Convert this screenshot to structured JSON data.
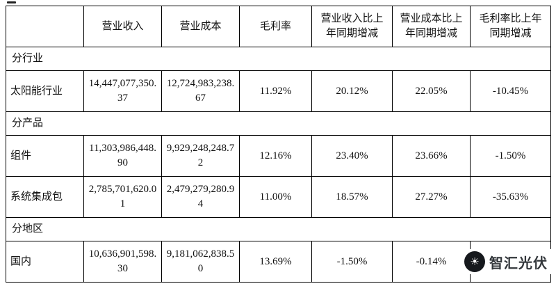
{
  "table": {
    "header": {
      "corner": "",
      "revenue": "营业收入",
      "cost": "营业成本",
      "margin": "毛利率",
      "revenue_yoy": "营业收入比上年同期增减",
      "cost_yoy": "营业成本比上年同期增减",
      "margin_yoy": "毛利率比上年同期增减"
    },
    "sections": {
      "industry": "分行业",
      "product": "分产品",
      "region": "分地区"
    },
    "rows": {
      "solar": {
        "label": "太阳能行业",
        "revenue": "14,447,077,350.37",
        "cost": "12,724,983,238.67",
        "margin": "11.92%",
        "revenue_yoy": "20.12%",
        "cost_yoy": "22.05%",
        "margin_yoy": "-10.45%"
      },
      "modules": {
        "label": "组件",
        "revenue": "11,303,986,448.90",
        "cost": "9,929,248,248.72",
        "margin": "12.16%",
        "revenue_yoy": "23.40%",
        "cost_yoy": "23.66%",
        "margin_yoy": "-1.50%"
      },
      "system": {
        "label": "系统集成包",
        "revenue": "2,785,701,620.01",
        "cost": "2,479,279,280.94",
        "margin": "11.00%",
        "revenue_yoy": "18.57%",
        "cost_yoy": "27.27%",
        "margin_yoy": "-35.63%"
      },
      "domestic": {
        "label": "国内",
        "revenue": "10,636,901,598.30",
        "cost": "9,181,062,838.50",
        "margin": "13.69%",
        "revenue_yoy": "-1.50%",
        "cost_yoy": "-0.14%",
        "margin_yoy": ""
      }
    }
  },
  "watermark": {
    "text": "智汇光伏",
    "logo_glyph": "☀"
  }
}
